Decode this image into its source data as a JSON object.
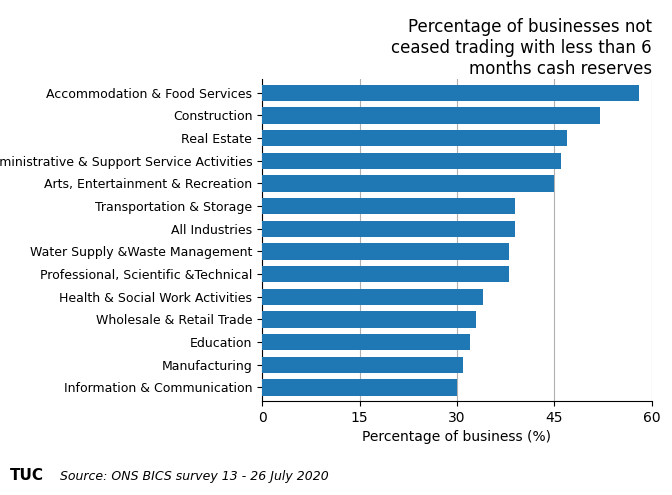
{
  "chart_data": {
    "type": "bar",
    "orientation": "horizontal",
    "title": "Percentage of businesses not\nceased trading with less than 6\nmonths cash reserves",
    "categories": [
      "Information & Communication",
      "Manufacturing",
      "Education",
      "Wholesale & Retail Trade",
      "Health & Social Work Activities",
      "Professional, Scientific &Technical",
      "Water Supply &Waste Management",
      "All Industries",
      "Transportation & Storage",
      "Arts, Entertainment & Recreation",
      "Administrative & Support Service Activities",
      "Real Estate",
      "Construction",
      "Accommodation & Food Services"
    ],
    "values": [
      30,
      31,
      32,
      33,
      34,
      38,
      38,
      39,
      39,
      45,
      46,
      47,
      52,
      58
    ],
    "xlabel": "Percentage of business (%)",
    "xlim": [
      0,
      60
    ],
    "xticks": [
      0,
      15,
      30,
      45,
      60
    ],
    "grid": true,
    "annotations": [
      "TUC",
      "Source: ONS BICS survey 13 - 26 July 2020"
    ]
  }
}
